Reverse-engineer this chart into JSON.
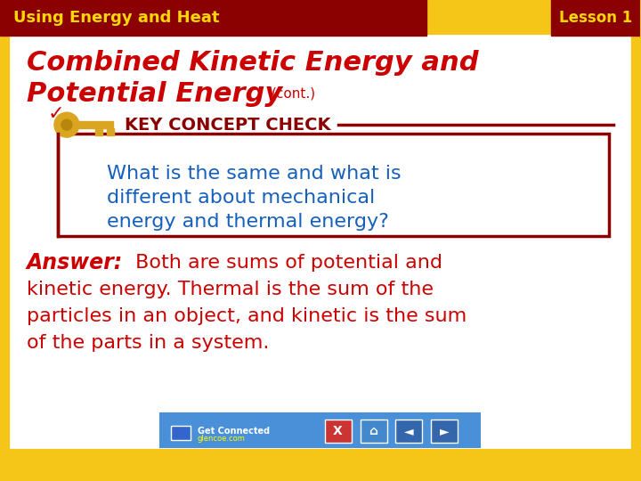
{
  "background_outer": "#F5C518",
  "background_inner": "#FFFFFF",
  "header_bg": "#8B0000",
  "header_text": "Using Energy and Heat",
  "header_text_color": "#FFD700",
  "lesson_text": "Lesson 1",
  "lesson_text_color": "#FFD700",
  "title_line1": "Combined Kinetic Energy and",
  "title_line2": "Potential Energy",
  "title_cont": "(cont.)",
  "title_color": "#CC0000",
  "key_concept_label": "Key Concept Check",
  "key_concept_color": "#8B0000",
  "box_border_color": "#8B0000",
  "question_text_line1": "What is the same and what is",
  "question_text_line2": "different about mechanical",
  "question_text_line3": "energy and thermal energy?",
  "question_color": "#1560BD",
  "answer_label": "Answer:",
  "answer_text": " Both are sums of potential and\nkinetic energy. Thermal is the sum of the\nparticles in an object, and kinetic is the sum\nof the parts in a system.",
  "answer_color": "#CC0000",
  "footer_bg": "#4A90D9",
  "get_connected_text": "Get Connected",
  "get_connected_url": "glencoe.com"
}
